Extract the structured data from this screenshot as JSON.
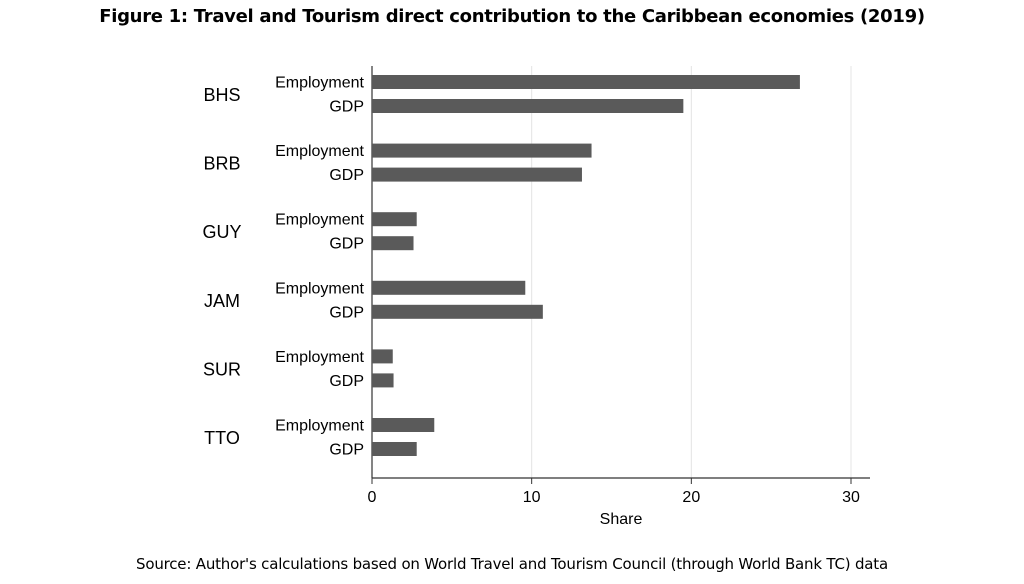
{
  "chart_data": {
    "type": "bar",
    "orientation": "horizontal",
    "title": "Figure 1: Travel and Tourism direct contribution to the Caribbean economies (2019)",
    "source": "Source: Author's calculations based on World Travel and Tourism Council (through World Bank TC) data",
    "xlabel": "Share",
    "ylabel": "",
    "xlim": [
      0,
      30
    ],
    "xticks": [
      "0",
      "10",
      "20",
      "30"
    ],
    "grid": true,
    "categories": [
      "BHS",
      "BRB",
      "GUY",
      "JAM",
      "SUR",
      "TTO"
    ],
    "sub_labels": [
      "Employment",
      "GDP"
    ],
    "series": [
      {
        "name": "Employment",
        "values": [
          26.8,
          13.75,
          2.8,
          9.6,
          1.3,
          3.9
        ]
      },
      {
        "name": "GDP",
        "values": [
          19.5,
          13.15,
          2.6,
          10.7,
          1.35,
          2.8
        ]
      }
    ],
    "bar_color": "#5a5a5a"
  }
}
